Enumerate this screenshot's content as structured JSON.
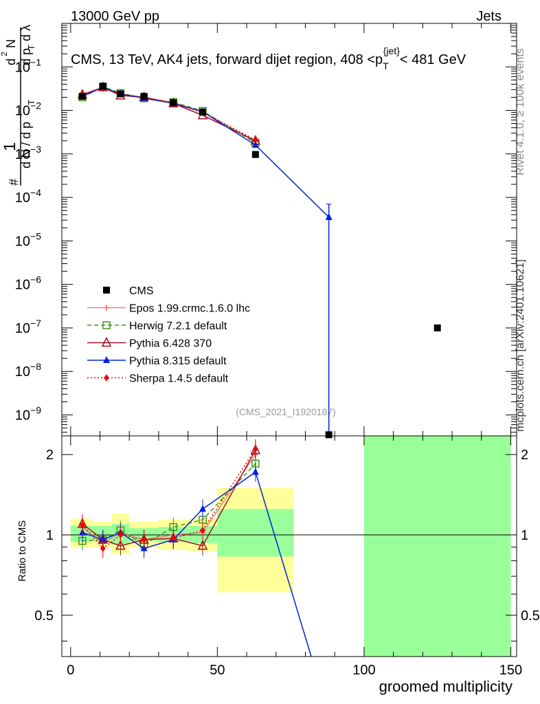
{
  "header": {
    "energy_label": "13000 GeV pp",
    "category_label": "Jets"
  },
  "side_labels": {
    "rivet": "Rivet 4.1.0, ≥ 100k events",
    "mcplots": "mcplots.cern.ch [arXiv:2401.10621]"
  },
  "colors": {
    "CMS": "#000000",
    "Epos": "#f08080",
    "Herwig": "#3a9a1a",
    "Pythia6": "#a01020",
    "Pythia8": "#0020e0",
    "Sherpa": "#f00000",
    "band_inner": "#99ff99",
    "band_outer": "#ffff99"
  },
  "chart_data": [
    {
      "type": "scatter",
      "panel": "main",
      "title": "CMS, 13 TeV, AK4 jets, forward dijet region, 408 <p_T^{jet}< 481 GeV",
      "title_parts": {
        "prefix": "CMS, 13 TeV, AK4 jets, forward dijet region, 408 <p",
        "sub": "T",
        "sup": "{jet}",
        "suffix": "< 481 GeV"
      },
      "ylabel_parts": [
        "1",
        "d N / d p",
        "#",
        "T",
        "d",
        "2",
        "N",
        "d p",
        "T",
        "d λ"
      ],
      "watermark": "(CMS_2021_I1920187)",
      "xlabel": "",
      "yscale": "log",
      "xlim": [
        -3,
        152
      ],
      "ylim": [
        3.3e-10,
        1.0
      ],
      "y_tick_exponents": [
        -9,
        -8,
        -7,
        -6,
        -5,
        -4,
        -3,
        -2,
        -1
      ],
      "y_tick_labels": [
        "10",
        "10",
        "10",
        "10",
        "10",
        "10",
        "10",
        "10",
        "10"
      ],
      "legend_position": "left-middle",
      "legend": [
        {
          "name": "CMS",
          "style": "marker-square"
        },
        {
          "name": "Epos 1.99.crmc.1.6.0 lhc",
          "style": "line-cross"
        },
        {
          "name": "Herwig 7.2.1 default",
          "style": "dashed-open-square"
        },
        {
          "name": "Pythia 6.428 370",
          "style": "line-open-triangle"
        },
        {
          "name": "Pythia 8.315 default",
          "style": "line-filled-triangle"
        },
        {
          "name": "Sherpa 1.4.5 default",
          "style": "dotted-diamond"
        }
      ],
      "series": [
        {
          "name": "CMS",
          "x": [
            4,
            11,
            17,
            25,
            35,
            45,
            63,
            88,
            125
          ],
          "y": [
            0.021,
            0.036,
            0.024,
            0.021,
            0.015,
            0.0092,
            0.00097,
            3.5e-10,
            1e-07
          ]
        },
        {
          "name": "Epos",
          "x": [
            4,
            11,
            17,
            25,
            35,
            45,
            63
          ],
          "y": [
            0.023,
            0.033,
            0.023,
            0.02,
            0.015,
            0.0094,
            0.0019
          ]
        },
        {
          "name": "Herwig",
          "x": [
            4,
            11,
            17,
            25,
            35,
            45,
            63
          ],
          "y": [
            0.02,
            0.035,
            0.025,
            0.019,
            0.0155,
            0.0097,
            0.0018
          ]
        },
        {
          "name": "Pythia6",
          "x": [
            4,
            11,
            17,
            25,
            35,
            45,
            63
          ],
          "y": [
            0.023,
            0.034,
            0.022,
            0.02,
            0.0145,
            0.0077,
            0.002
          ]
        },
        {
          "name": "Pythia8",
          "x": [
            4,
            11,
            17,
            25,
            35,
            45,
            63,
            88,
            88
          ],
          "y": [
            0.021,
            0.034,
            0.024,
            0.019,
            0.0145,
            0.0093,
            0.0016,
            3.5e-05,
            3.3e-10
          ],
          "yerr_upper": [
            null,
            null,
            null,
            null,
            null,
            null,
            null,
            7e-05,
            null
          ]
        },
        {
          "name": "Sherpa",
          "x": [
            4,
            11,
            17,
            25,
            35,
            45,
            63
          ],
          "y": [
            0.024,
            0.032,
            0.024,
            0.02,
            0.0145,
            0.009,
            0.0021
          ]
        }
      ]
    },
    {
      "type": "line",
      "panel": "ratio",
      "ylabel": "Ratio to CMS",
      "xlabel": "groomed multiplicity",
      "xlim": [
        -3,
        152
      ],
      "ylim": [
        0.35,
        2.35
      ],
      "x_ticks": [
        0,
        50,
        100,
        150
      ],
      "x_tick_labels": [
        "0",
        "50",
        "100",
        "150"
      ],
      "y_ticks": [
        0.5,
        1,
        2
      ],
      "y_tick_labels": [
        "0.5",
        "1",
        "2"
      ],
      "bands": [
        {
          "x": [
            0,
            7
          ],
          "inner": [
            0.94,
            1.08
          ],
          "outer": [
            0.9,
            1.15
          ]
        },
        {
          "x": [
            7,
            14
          ],
          "inner": [
            0.95,
            1.08
          ],
          "outer": [
            0.9,
            1.12
          ]
        },
        {
          "x": [
            14,
            20
          ],
          "inner": [
            0.92,
            1.1
          ],
          "outer": [
            0.85,
            1.2
          ]
        },
        {
          "x": [
            20,
            30
          ],
          "inner": [
            0.95,
            1.06
          ],
          "outer": [
            0.9,
            1.12
          ]
        },
        {
          "x": [
            30,
            40
          ],
          "inner": [
            0.94,
            1.07
          ],
          "outer": [
            0.88,
            1.14
          ]
        },
        {
          "x": [
            40,
            50
          ],
          "inner": [
            0.93,
            1.08
          ],
          "outer": [
            0.87,
            1.15
          ]
        },
        {
          "x": [
            50,
            76
          ],
          "inner": [
            0.83,
            1.25
          ],
          "outer": [
            0.61,
            1.5
          ]
        },
        {
          "x": [
            100,
            150
          ],
          "inner": [
            0.35,
            2.35
          ],
          "outer": [
            0.35,
            2.35
          ]
        }
      ],
      "series": [
        {
          "name": "Epos",
          "x": [
            4,
            11,
            17,
            25,
            35,
            45,
            63
          ],
          "y": [
            1.07,
            0.93,
            1.02,
            0.96,
            1.0,
            1.02,
            2.0
          ]
        },
        {
          "name": "Herwig",
          "x": [
            4,
            11,
            17,
            25,
            35,
            45,
            63
          ],
          "y": [
            0.95,
            0.96,
            1.04,
            0.92,
            1.07,
            1.14,
            1.85
          ]
        },
        {
          "name": "Pythia6",
          "x": [
            4,
            11,
            17,
            25,
            35,
            45,
            63
          ],
          "y": [
            1.1,
            0.96,
            0.91,
            0.96,
            0.97,
            0.91,
            2.08
          ]
        },
        {
          "name": "Pythia8",
          "x": [
            4,
            11,
            17,
            25,
            35,
            45,
            63,
            82
          ],
          "y": [
            1.02,
            0.96,
            1.02,
            0.89,
            0.96,
            1.25,
            1.72,
            0.35
          ]
        },
        {
          "name": "Sherpa",
          "x": [
            4,
            11,
            17,
            25,
            35,
            45,
            63
          ],
          "y": [
            1.09,
            0.89,
            1.0,
            0.96,
            0.97,
            1.04,
            2.1
          ]
        }
      ]
    }
  ]
}
